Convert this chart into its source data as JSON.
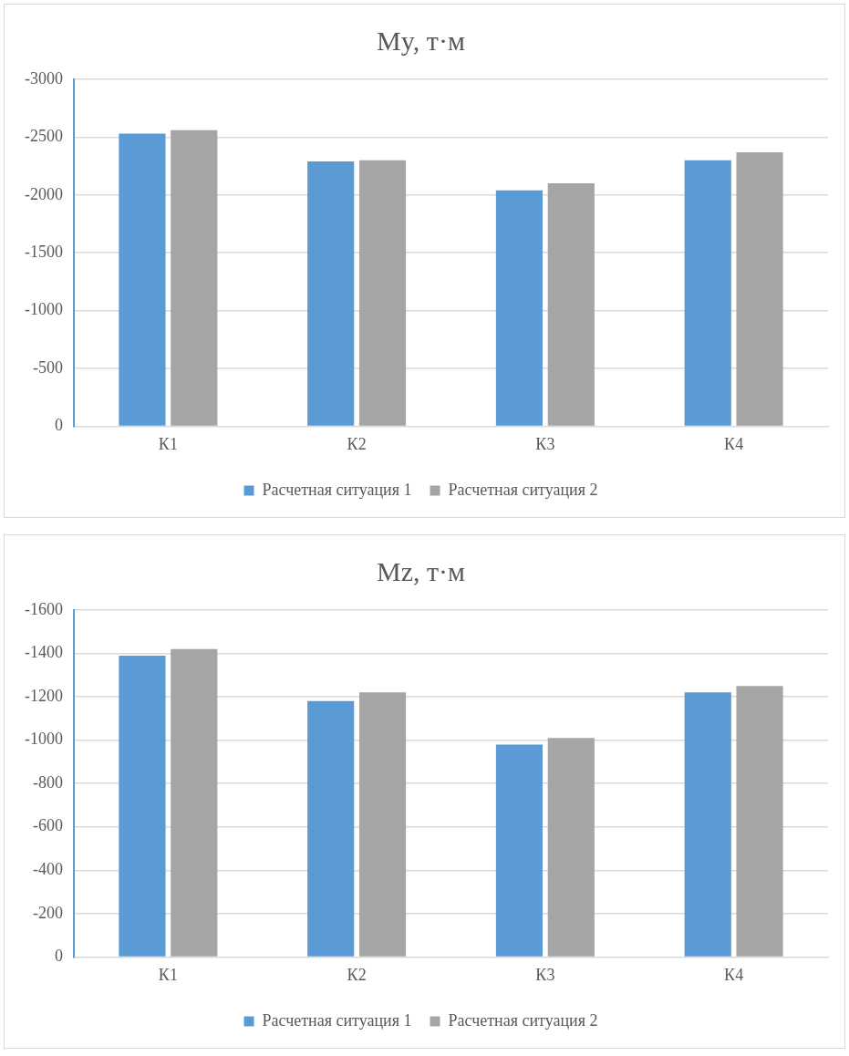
{
  "chart_data": [
    {
      "type": "bar",
      "title": "My, т·м",
      "categories": [
        "К1",
        "К2",
        "К3",
        "К4"
      ],
      "series": [
        {
          "name": "Расчетная ситуация 1",
          "color": "#5b9bd5",
          "values": [
            -2530,
            -2290,
            -2040,
            -2300
          ]
        },
        {
          "name": "Расчетная ситуация 2",
          "color": "#a5a5a5",
          "values": [
            -2560,
            -2300,
            -2100,
            -2370
          ]
        }
      ],
      "ylim": [
        0,
        -3000
      ],
      "yticks": [
        0,
        -500,
        -1000,
        -1500,
        -2000,
        -2500,
        -3000
      ],
      "grid": "y",
      "legend": "bottom"
    },
    {
      "type": "bar",
      "title": "Mz, т·м",
      "categories": [
        "К1",
        "К2",
        "К3",
        "К4"
      ],
      "series": [
        {
          "name": "Расчетная ситуация 1",
          "color": "#5b9bd5",
          "values": [
            -1390,
            -1180,
            -980,
            -1220
          ]
        },
        {
          "name": "Расчетная ситуация 2",
          "color": "#a5a5a5",
          "values": [
            -1420,
            -1220,
            -1010,
            -1250
          ]
        }
      ],
      "ylim": [
        0,
        -1600
      ],
      "yticks": [
        0,
        -200,
        -400,
        -600,
        -800,
        -1000,
        -1200,
        -1400,
        -1600
      ],
      "grid": "y",
      "legend": "bottom"
    }
  ]
}
